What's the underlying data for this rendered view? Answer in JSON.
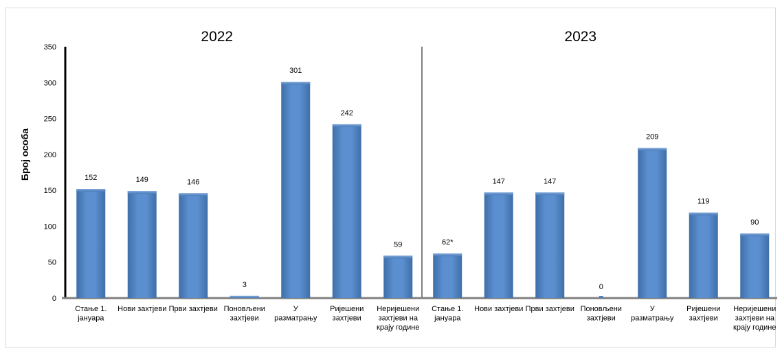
{
  "chart_data": {
    "type": "bar",
    "ylabel": "Број особа",
    "ylim": [
      0,
      350
    ],
    "yticks": [
      0,
      50,
      100,
      150,
      200,
      250,
      300,
      350
    ],
    "grid": false,
    "bar_color": "#4f81bd",
    "groups": [
      {
        "year": "2022",
        "categories": [
          [
            "Стање 1.",
            "јануара"
          ],
          [
            "Нови захтјеви"
          ],
          [
            "Први захтјеви"
          ],
          [
            "Поновљени",
            "захтјеви"
          ],
          [
            "У",
            "разматрању"
          ],
          [
            "Ријешени",
            "захтјеви"
          ],
          [
            "Неријешени",
            "захтјеви на",
            "крају године"
          ]
        ],
        "values": [
          152,
          149,
          146,
          3,
          301,
          242,
          59
        ],
        "labels": [
          "152",
          "149",
          "146",
          "3",
          "301",
          "242",
          "59"
        ]
      },
      {
        "year": "2023",
        "categories": [
          [
            "Стање 1.",
            "јануара"
          ],
          [
            "Нови захтјеви"
          ],
          [
            "Први захтјеви"
          ],
          [
            "Поновљени",
            "захтјеви"
          ],
          [
            "У",
            "разматрању"
          ],
          [
            "Ријешени",
            "захтјеви"
          ],
          [
            "Неријешени",
            "захтјеви на",
            "крају године"
          ]
        ],
        "values": [
          62,
          147,
          147,
          0,
          209,
          119,
          90
        ],
        "labels": [
          "62*",
          "147",
          "147",
          "0",
          "209",
          "119",
          "90"
        ]
      }
    ]
  }
}
